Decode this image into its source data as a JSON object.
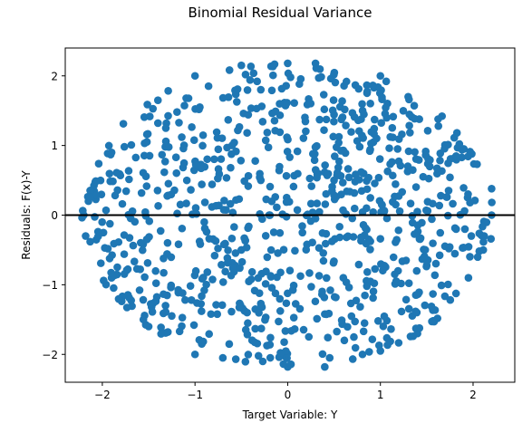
{
  "chart_data": {
    "type": "scatter",
    "title": "Binomial Residual Variance",
    "xlabel": "Target Variable: Y",
    "ylabel": "Residuals: F(x)-Y",
    "xlim": [
      -2.4,
      2.45
    ],
    "ylim": [
      -2.4,
      2.4
    ],
    "xticks": [
      -2,
      -1,
      0,
      1,
      2
    ],
    "yticks": [
      -2,
      -1,
      0,
      1,
      2
    ],
    "xtick_labels": [
      "−2",
      "−1",
      "0",
      "1",
      "2"
    ],
    "ytick_labels": [
      "−2",
      "−1",
      "0",
      "1",
      "2"
    ],
    "grid": false,
    "legend": false,
    "series_color": "#1f77b4",
    "reference_line": {
      "y": 0,
      "color": "#000000"
    },
    "point_count": 900,
    "shape": "points fill an elliptical region centred at (0, 0): x from about -2.2 to 2.2, y from about -2.2 to 2.2",
    "sample_points": [
      [
        -2.2,
        0.0
      ],
      [
        2.2,
        0.0
      ],
      [
        0.0,
        2.18
      ],
      [
        0.0,
        -2.18
      ],
      [
        -2.15,
        0.2
      ],
      [
        2.2,
        0.38
      ],
      [
        -2.18,
        -0.3
      ],
      [
        2.12,
        -0.3
      ],
      [
        -0.5,
        2.15
      ],
      [
        0.3,
        2.18
      ],
      [
        -0.7,
        -2.05
      ],
      [
        0.4,
        -2.18
      ],
      [
        1.3,
        1.7
      ],
      [
        -1.4,
        1.65
      ],
      [
        1.4,
        -1.7
      ],
      [
        -1.5,
        -1.6
      ],
      [
        -1.0,
        2.0
      ],
      [
        1.0,
        2.0
      ],
      [
        -1.0,
        -2.0
      ],
      [
        1.0,
        -1.95
      ],
      [
        -1.9,
        0.9
      ],
      [
        1.9,
        0.95
      ],
      [
        -1.9,
        -0.9
      ],
      [
        1.95,
        -0.9
      ],
      [
        -0.2,
        0.0
      ],
      [
        0.3,
        -0.05
      ],
      [
        0.85,
        0.1
      ],
      [
        -0.9,
        -0.1
      ],
      [
        0.5,
        0.5
      ],
      [
        -0.5,
        -0.5
      ],
      [
        0.6,
        -0.9
      ],
      [
        -0.6,
        1.0
      ]
    ]
  }
}
